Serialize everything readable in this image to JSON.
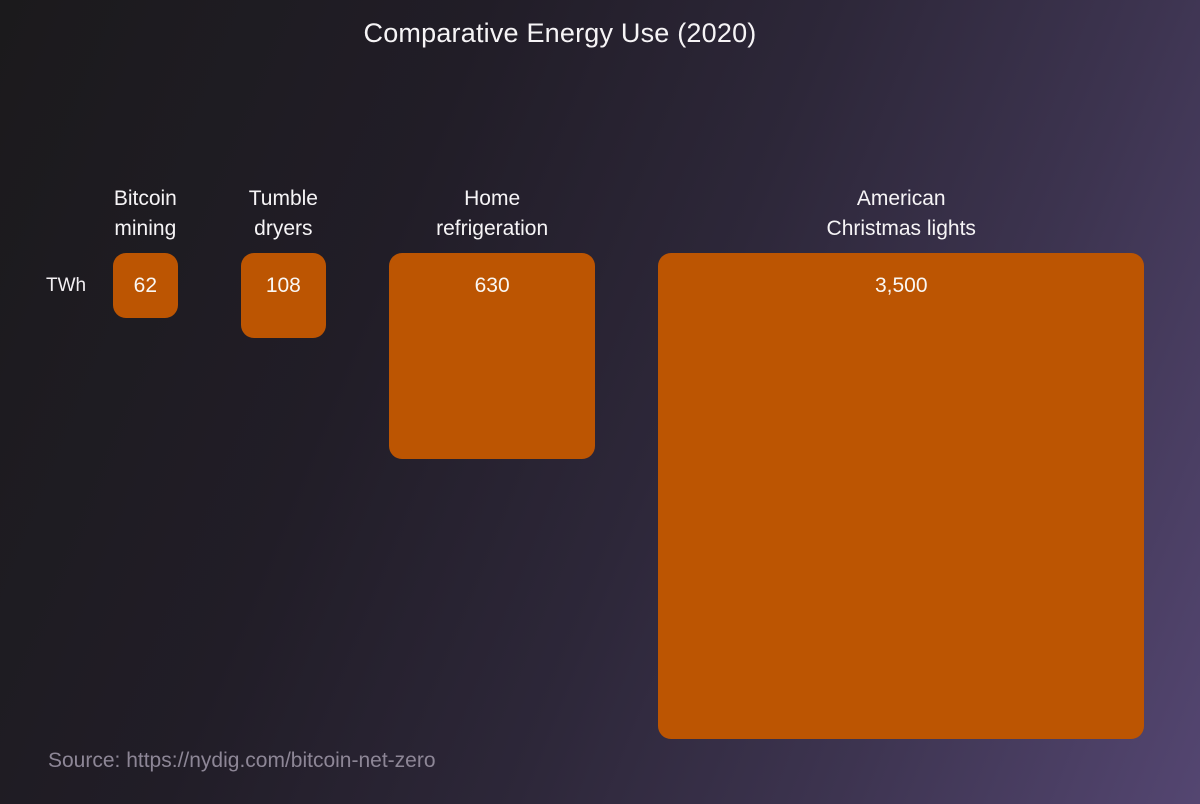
{
  "title": "Comparative Energy Use (2020)",
  "unit_label": "TWh",
  "source": "Source: https://nydig.com/bitcoin-net-zero",
  "colors": {
    "square": "#BC5502",
    "value_text": "#FAF7F4",
    "label_text": "#F6F4F6",
    "source_text": "#8D8696",
    "background_start": "#1B1A1C",
    "background_end": "#544671"
  },
  "chart_data": {
    "type": "bar",
    "variant": "proportional-area-squares",
    "title": "Comparative Energy Use (2020)",
    "ylabel": "TWh",
    "categories": [
      "Bitcoin mining",
      "Tumble dryers",
      "Home refrigeration",
      "American Christmas lights"
    ],
    "label_lines": [
      [
        "Bitcoin",
        "mining"
      ],
      [
        "Tumble",
        "dryers"
      ],
      [
        "Home",
        "refrigeration"
      ],
      [
        "American",
        "Christmas lights"
      ]
    ],
    "values": [
      62,
      108,
      630,
      3500
    ],
    "value_labels": [
      "62",
      "108",
      "630",
      "3,500"
    ],
    "notes": "square areas proportional to TWh values; grid off; no axes"
  }
}
